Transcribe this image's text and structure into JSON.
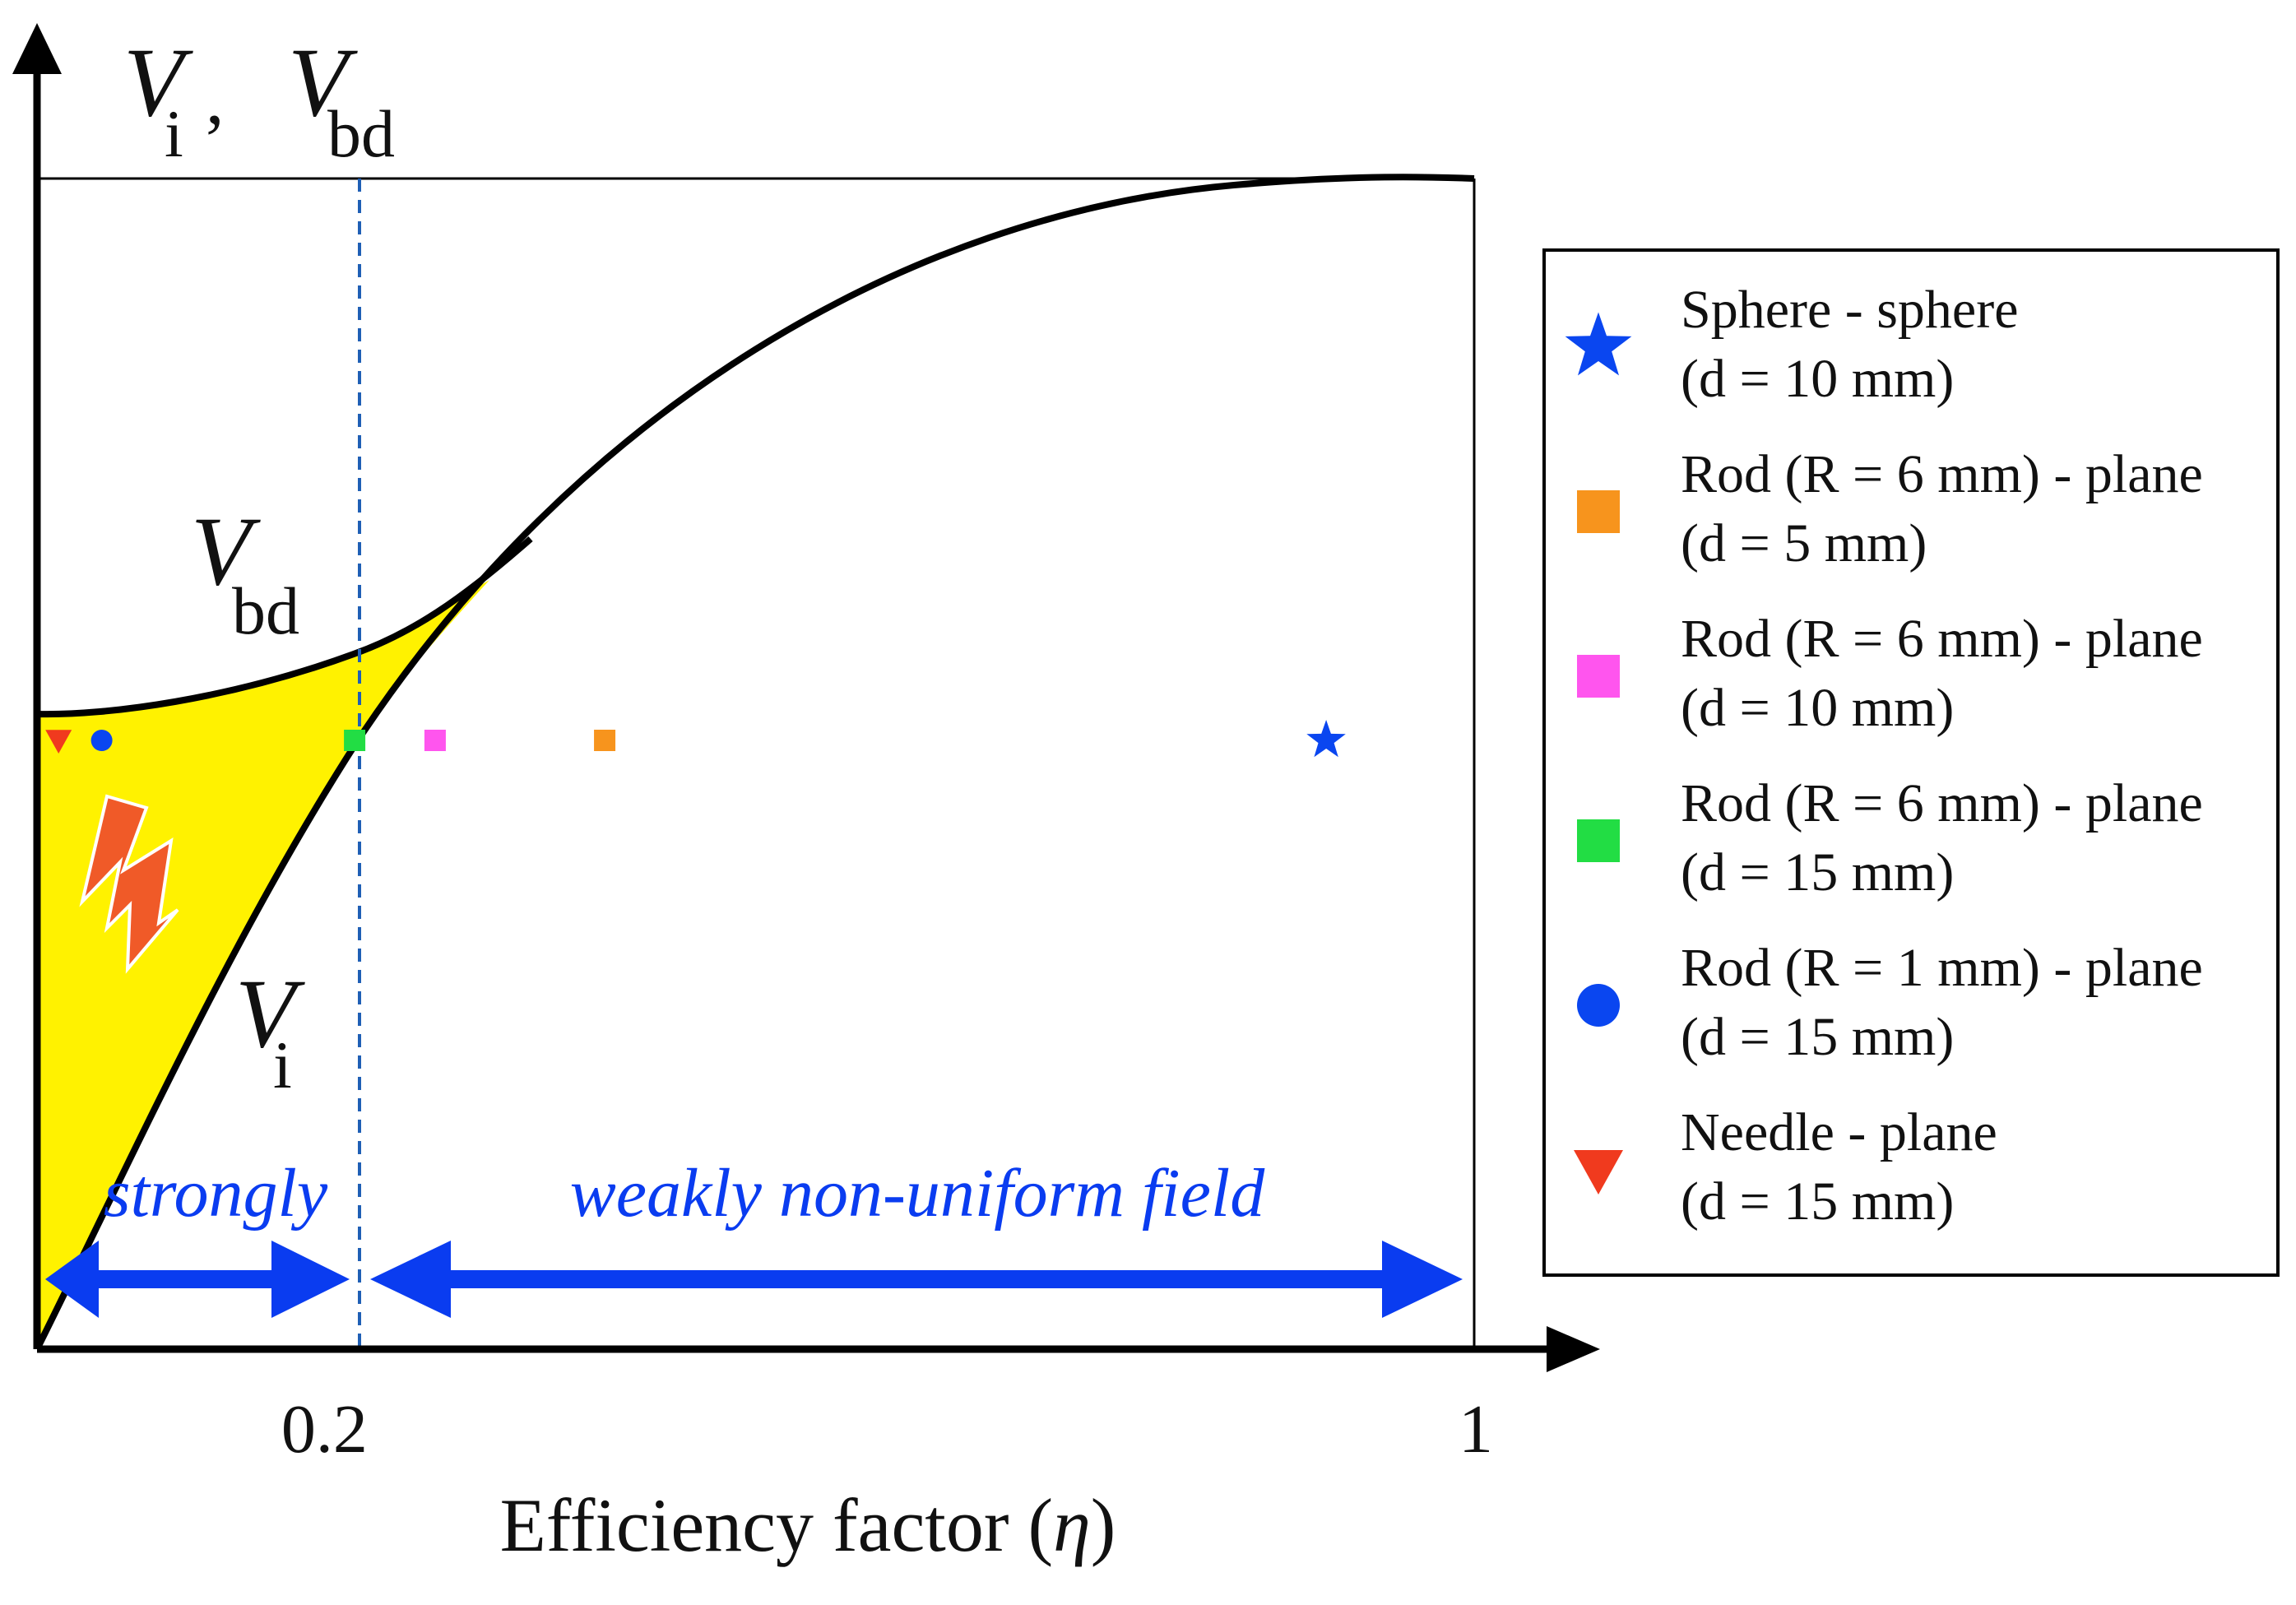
{
  "y_axis_label": {
    "main": "V",
    "sub1": "i",
    "sep": " , ",
    "main2": "V",
    "sub2": "bd"
  },
  "curve_labels": {
    "vbd": {
      "main": "V",
      "sub": "bd"
    },
    "vi": {
      "main": "V",
      "sub": "i"
    }
  },
  "x_axis": {
    "title": "Efficiency factor (",
    "symbol": "η",
    "close": ")",
    "ticks": [
      {
        "value": 0.2,
        "label": "0.2"
      },
      {
        "value": 1,
        "label": "1"
      }
    ]
  },
  "regions": {
    "strongly": "strongly",
    "weakly": "weakly non-uniform field"
  },
  "colors": {
    "discharge_fill": "#FFF200",
    "arrow_blue": "#0A3CF0",
    "divider_blue": "#1F5FB5",
    "lightning": "#F05A28",
    "axis": "#000000"
  },
  "markers": [
    {
      "eta": 0.015,
      "shape": "triangle-down",
      "color": "#F03A1E"
    },
    {
      "eta": 0.045,
      "shape": "circle",
      "color": "#0A46F0"
    },
    {
      "eta": 0.221,
      "shape": "square",
      "color": "#22DD44"
    },
    {
      "eta": 0.277,
      "shape": "square",
      "color": "#FF55EE"
    },
    {
      "eta": 0.395,
      "shape": "square",
      "color": "#F7941D"
    },
    {
      "eta": 0.897,
      "shape": "star",
      "color": "#0A46F0"
    }
  ],
  "legend": {
    "items": [
      {
        "line1": "Sphere - sphere",
        "line2": "(d = 10 mm)",
        "shape": "star",
        "color": "#0A46F0"
      },
      {
        "line1": "Rod (R = 6 mm) - plane",
        "line2": "(d = 5 mm)",
        "shape": "square",
        "color": "#F7941D"
      },
      {
        "line1": "Rod (R = 6 mm) - plane",
        "line2": "(d = 10 mm)",
        "shape": "square",
        "color": "#FF55EE"
      },
      {
        "line1": "Rod (R = 6 mm) - plane",
        "line2": "(d = 15 mm)",
        "shape": "square",
        "color": "#22DD44"
      },
      {
        "line1": "Rod (R = 1 mm) - plane",
        "line2": "(d = 15 mm)",
        "shape": "circle",
        "color": "#0A46F0"
      },
      {
        "line1": "Needle - plane",
        "line2": "(d = 15 mm)",
        "shape": "triangle-down",
        "color": "#F03A1E"
      }
    ]
  }
}
